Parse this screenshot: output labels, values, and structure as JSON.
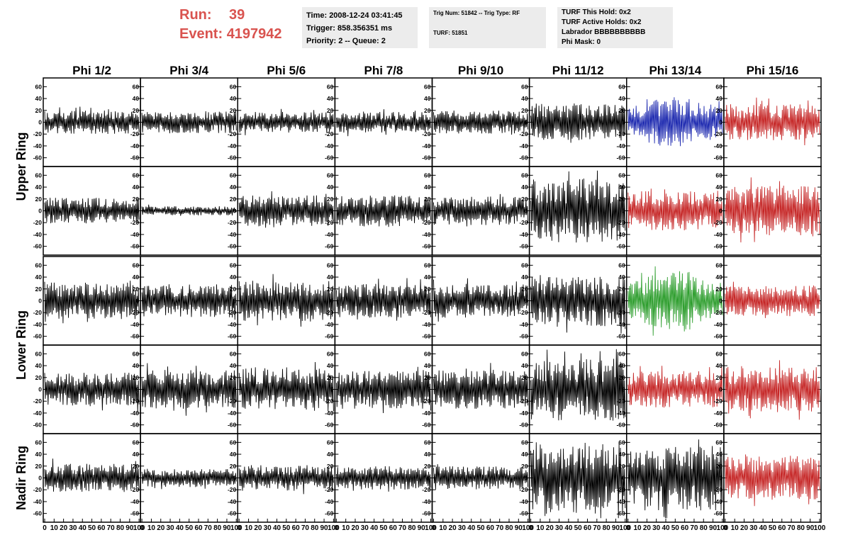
{
  "header": {
    "run_label": "Run:",
    "run_value": "39",
    "event_label": "Event:",
    "event_value": "4197942",
    "time": "Time: 2008-12-24 03:41:45",
    "trigger": "Trigger: 858.356351 ms",
    "priority": "Priority: 2 -- Queue: 2",
    "trig_num": "Trig Num: 51842 -- Trig Type: RF",
    "turf": "TURF: 51851",
    "turf_this_hold": "TURF This Hold: 0x2",
    "turf_active_holds": "TURF Active Holds: 0x2",
    "labrador": "Labrador BBBBBBBBBB",
    "phi_mask": "Phi Mask: 0"
  },
  "colors": {
    "header_red": "#d9534f",
    "trace_black": "#000000",
    "trace_blue": "#1f2bb0",
    "trace_green": "#2e9e2e",
    "trace_red": "#c62828",
    "info_box_bg": "#ececec"
  },
  "chart_data": {
    "type": "line",
    "columns": [
      "Phi 1/2",
      "Phi 3/4",
      "Phi 5/6",
      "Phi 7/8",
      "Phi 9/10",
      "Phi 11/12",
      "Phi 13/14",
      "Phi 15/16"
    ],
    "ring_labels": [
      {
        "text": "Upper Ring",
        "rows": [
          0,
          1
        ]
      },
      {
        "text": "Lower Ring",
        "rows": [
          2,
          3
        ]
      },
      {
        "text": "Nadir Ring",
        "rows": [
          4
        ]
      }
    ],
    "xlim": [
      0,
      100
    ],
    "ylim": [
      -70,
      70
    ],
    "y_ticks": [
      -60,
      -40,
      -20,
      0,
      20,
      40,
      60
    ],
    "x_tick_labels": [
      "0",
      "10",
      "20",
      "30",
      "40",
      "50",
      "60",
      "70",
      "80",
      "90",
      "100"
    ],
    "panel_traces": [
      [
        {
          "color": "black",
          "amplitude": 18,
          "envelope": "flat",
          "seed": 11
        },
        {
          "color": "black",
          "amplitude": 17,
          "envelope": "flat",
          "seed": 12
        },
        {
          "color": "black",
          "amplitude": 16,
          "envelope": "flat",
          "seed": 13
        },
        {
          "color": "black",
          "amplitude": 16,
          "envelope": "flat",
          "seed": 14
        },
        {
          "color": "black",
          "amplitude": 18,
          "envelope": "flat",
          "seed": 15
        },
        {
          "color": "black",
          "amplitude": 28,
          "envelope": "flat",
          "seed": 16
        },
        {
          "color": "blue",
          "amplitude": 40,
          "envelope": "center",
          "seed": 17
        },
        {
          "color": "red",
          "amplitude": 28,
          "envelope": "flat",
          "seed": 18
        }
      ],
      [
        {
          "color": "black",
          "amplitude": 20,
          "envelope": "flat",
          "seed": 21
        },
        {
          "color": "black",
          "amplitude": 7,
          "envelope": "flat",
          "seed": 22
        },
        {
          "color": "black",
          "amplitude": 24,
          "envelope": "flat",
          "seed": 23
        },
        {
          "color": "black",
          "amplitude": 24,
          "envelope": "flat",
          "seed": 24
        },
        {
          "color": "black",
          "amplitude": 22,
          "envelope": "flat",
          "seed": 25
        },
        {
          "color": "black",
          "amplitude": 50,
          "envelope": "flat",
          "seed": 26
        },
        {
          "color": "red",
          "amplitude": 30,
          "envelope": "flat",
          "seed": 27
        },
        {
          "color": "red",
          "amplitude": 38,
          "envelope": "flat",
          "seed": 28
        }
      ],
      [
        {
          "color": "black",
          "amplitude": 28,
          "envelope": "flat",
          "seed": 31
        },
        {
          "color": "black",
          "amplitude": 26,
          "envelope": "flat",
          "seed": 32
        },
        {
          "color": "black",
          "amplitude": 32,
          "envelope": "flat",
          "seed": 33
        },
        {
          "color": "black",
          "amplitude": 26,
          "envelope": "flat",
          "seed": 34
        },
        {
          "color": "black",
          "amplitude": 26,
          "envelope": "flat",
          "seed": 35
        },
        {
          "color": "black",
          "amplitude": 40,
          "envelope": "flat",
          "seed": 36
        },
        {
          "color": "green",
          "amplitude": 48,
          "envelope": "center",
          "seed": 37
        },
        {
          "color": "red",
          "amplitude": 24,
          "envelope": "flat",
          "seed": 38
        }
      ],
      [
        {
          "color": "black",
          "amplitude": 26,
          "envelope": "flat",
          "seed": 41
        },
        {
          "color": "black",
          "amplitude": 30,
          "envelope": "flat",
          "seed": 42
        },
        {
          "color": "black",
          "amplitude": 34,
          "envelope": "flat",
          "seed": 43
        },
        {
          "color": "black",
          "amplitude": 30,
          "envelope": "flat",
          "seed": 44
        },
        {
          "color": "black",
          "amplitude": 30,
          "envelope": "flat",
          "seed": 45
        },
        {
          "color": "black",
          "amplitude": 48,
          "envelope": "flat",
          "seed": 46
        },
        {
          "color": "red",
          "amplitude": 28,
          "envelope": "flat",
          "seed": 47
        },
        {
          "color": "red",
          "amplitude": 36,
          "envelope": "flat",
          "seed": 48
        }
      ],
      [
        {
          "color": "black",
          "amplitude": 22,
          "envelope": "flat",
          "seed": 51
        },
        {
          "color": "black",
          "amplitude": 14,
          "envelope": "flat",
          "seed": 52
        },
        {
          "color": "black",
          "amplitude": 20,
          "envelope": "flat",
          "seed": 53
        },
        {
          "color": "black",
          "amplitude": 18,
          "envelope": "flat",
          "seed": 54
        },
        {
          "color": "black",
          "amplitude": 18,
          "envelope": "flat",
          "seed": 55
        },
        {
          "color": "black",
          "amplitude": 55,
          "envelope": "flat",
          "seed": 56
        },
        {
          "color": "black",
          "amplitude": 50,
          "envelope": "flat",
          "seed": 57
        },
        {
          "color": "red",
          "amplitude": 34,
          "envelope": "flat",
          "seed": 58
        }
      ]
    ]
  }
}
